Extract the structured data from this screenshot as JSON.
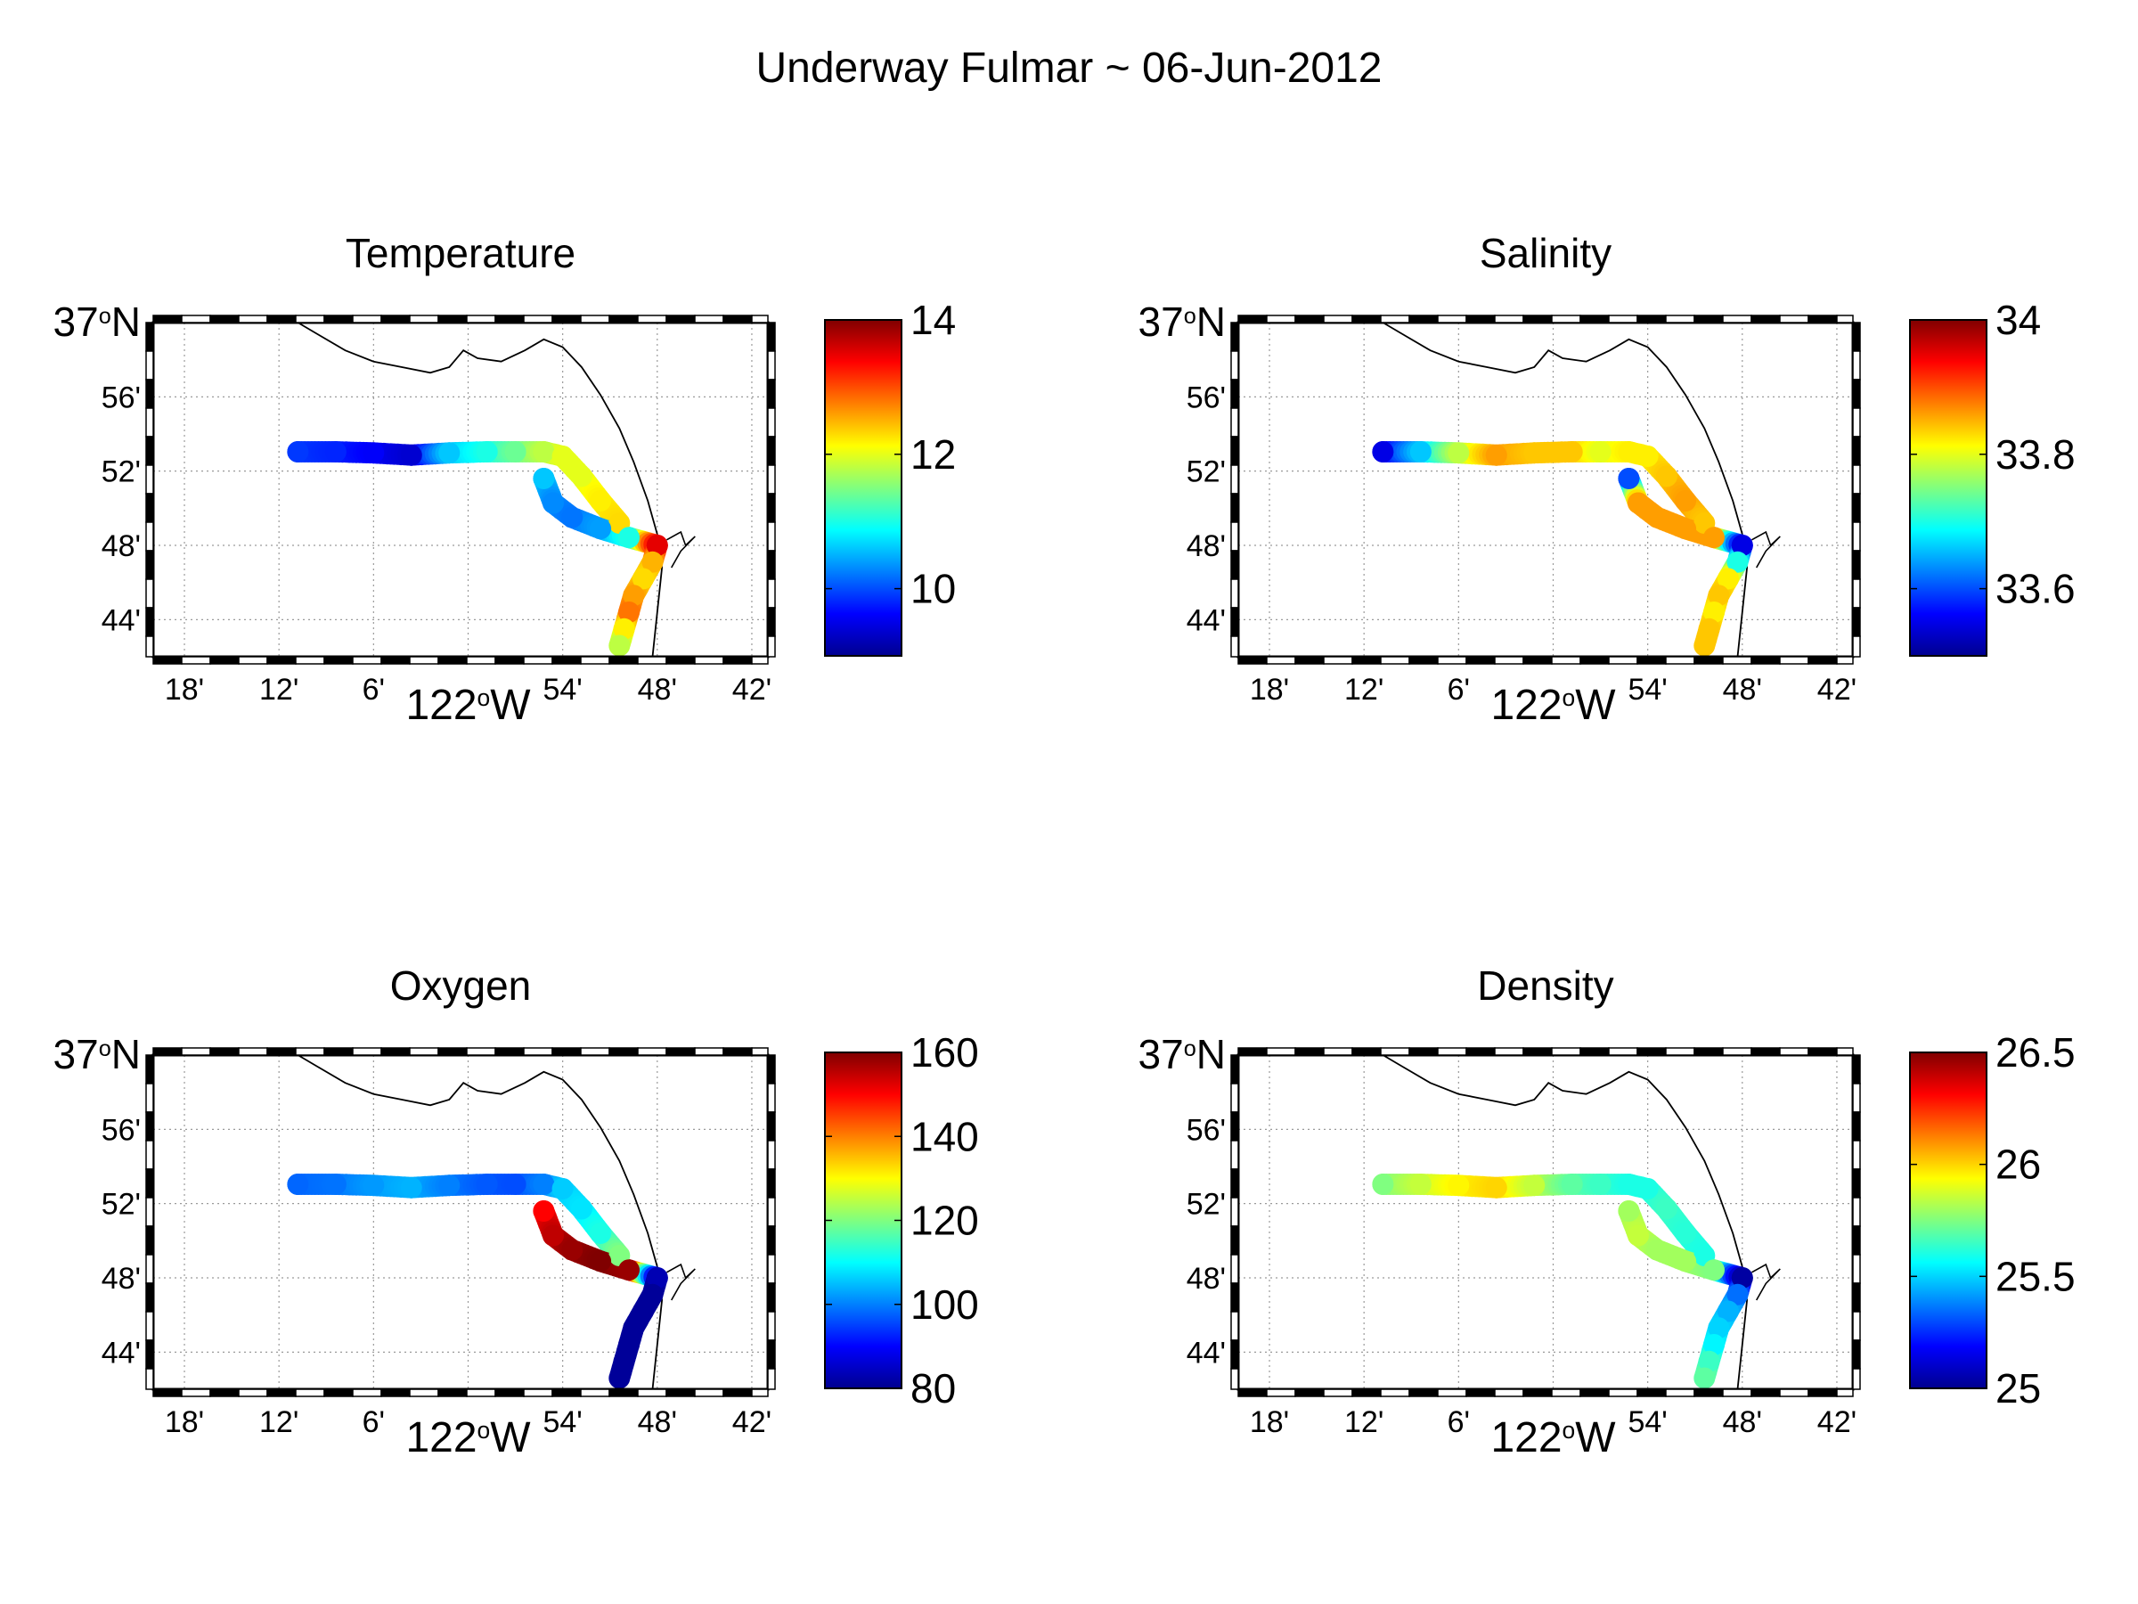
{
  "figure_title": "Underway Fulmar ~ 06-Jun-2012",
  "colormap": "jet",
  "chart_data": [
    {
      "type": "scatter",
      "title": "Temperature",
      "variable": "temperature",
      "lon_range": [
        -122.333,
        -121.683
      ],
      "lat_range": [
        36.7,
        37.0
      ],
      "x_ticks": [
        {
          "value": -122.3,
          "label": "18'"
        },
        {
          "value": -122.2,
          "label": "12'"
        },
        {
          "value": -122.1,
          "label": "6'"
        },
        {
          "value": -122.0,
          "label": "122ºW"
        },
        {
          "value": -121.9,
          "label": "54'"
        },
        {
          "value": -121.8,
          "label": "48'"
        },
        {
          "value": -121.7,
          "label": "42'"
        }
      ],
      "y_ticks": [
        {
          "value": 37.0,
          "label": "37ºN"
        },
        {
          "value": 36.9333,
          "label": "56'"
        },
        {
          "value": 36.8667,
          "label": "52'"
        },
        {
          "value": 36.8,
          "label": "48'"
        },
        {
          "value": 36.7333,
          "label": "44'"
        }
      ],
      "grid": true,
      "colorbar": {
        "range": [
          9,
          14
        ],
        "ticks": [
          10,
          12,
          14
        ]
      },
      "points": [
        {
          "lon": -122.18,
          "lat": 36.884,
          "value": 9.9
        },
        {
          "lon": -122.14,
          "lat": 36.884,
          "value": 9.8
        },
        {
          "lon": -122.1,
          "lat": 36.883,
          "value": 9.6
        },
        {
          "lon": -122.06,
          "lat": 36.881,
          "value": 9.4
        },
        {
          "lon": -122.02,
          "lat": 36.883,
          "value": 10.6
        },
        {
          "lon": -121.98,
          "lat": 36.884,
          "value": 11.0
        },
        {
          "lon": -121.95,
          "lat": 36.884,
          "value": 11.4
        },
        {
          "lon": -121.92,
          "lat": 36.884,
          "value": 11.8
        },
        {
          "lon": -121.9,
          "lat": 36.88,
          "value": 12.0
        },
        {
          "lon": -121.88,
          "lat": 36.862,
          "value": 12.0
        },
        {
          "lon": -121.86,
          "lat": 36.84,
          "value": 12.2
        },
        {
          "lon": -121.84,
          "lat": 36.82,
          "value": 12.3
        },
        {
          "lon": -121.92,
          "lat": 36.86,
          "value": 10.6
        },
        {
          "lon": -121.91,
          "lat": 36.838,
          "value": 10.3
        },
        {
          "lon": -121.89,
          "lat": 36.825,
          "value": 10.2
        },
        {
          "lon": -121.86,
          "lat": 36.815,
          "value": 10.4
        },
        {
          "lon": -121.83,
          "lat": 36.807,
          "value": 11.0
        },
        {
          "lon": -121.8,
          "lat": 36.8,
          "value": 13.5
        },
        {
          "lon": -121.805,
          "lat": 36.785,
          "value": 12.5
        },
        {
          "lon": -121.815,
          "lat": 36.77,
          "value": 12.3
        },
        {
          "lon": -121.825,
          "lat": 36.755,
          "value": 12.6
        },
        {
          "lon": -121.83,
          "lat": 36.74,
          "value": 12.8
        },
        {
          "lon": -121.835,
          "lat": 36.725,
          "value": 12.2
        },
        {
          "lon": -121.84,
          "lat": 36.71,
          "value": 11.8
        }
      ]
    },
    {
      "type": "scatter",
      "title": "Salinity",
      "variable": "salinity",
      "lon_range": [
        -122.333,
        -121.683
      ],
      "lat_range": [
        36.7,
        37.0
      ],
      "x_ticks": [
        {
          "value": -122.3,
          "label": "18'"
        },
        {
          "value": -122.2,
          "label": "12'"
        },
        {
          "value": -122.1,
          "label": "6'"
        },
        {
          "value": -122.0,
          "label": "122ºW"
        },
        {
          "value": -121.9,
          "label": "54'"
        },
        {
          "value": -121.8,
          "label": "48'"
        },
        {
          "value": -121.7,
          "label": "42'"
        }
      ],
      "y_ticks": [
        {
          "value": 37.0,
          "label": "37ºN"
        },
        {
          "value": 36.9333,
          "label": "56'"
        },
        {
          "value": 36.8667,
          "label": "52'"
        },
        {
          "value": 36.8,
          "label": "48'"
        },
        {
          "value": 36.7333,
          "label": "44'"
        }
      ],
      "grid": true,
      "colorbar": {
        "range": [
          33.5,
          34.0
        ],
        "ticks": [
          33.6,
          33.8,
          34
        ]
      },
      "points": [
        {
          "lon": -122.18,
          "lat": 36.884,
          "value": 33.55
        },
        {
          "lon": -122.14,
          "lat": 36.884,
          "value": 33.66
        },
        {
          "lon": -122.1,
          "lat": 36.883,
          "value": 33.78
        },
        {
          "lon": -122.06,
          "lat": 36.881,
          "value": 33.86
        },
        {
          "lon": -122.02,
          "lat": 36.883,
          "value": 33.84
        },
        {
          "lon": -121.98,
          "lat": 36.884,
          "value": 33.84
        },
        {
          "lon": -121.95,
          "lat": 36.884,
          "value": 33.8
        },
        {
          "lon": -121.92,
          "lat": 36.884,
          "value": 33.82
        },
        {
          "lon": -121.9,
          "lat": 36.88,
          "value": 33.82
        },
        {
          "lon": -121.88,
          "lat": 36.862,
          "value": 33.84
        },
        {
          "lon": -121.86,
          "lat": 36.84,
          "value": 33.86
        },
        {
          "lon": -121.84,
          "lat": 36.82,
          "value": 33.84
        },
        {
          "lon": -121.92,
          "lat": 36.86,
          "value": 33.6
        },
        {
          "lon": -121.91,
          "lat": 36.838,
          "value": 33.86
        },
        {
          "lon": -121.89,
          "lat": 36.825,
          "value": 33.86
        },
        {
          "lon": -121.86,
          "lat": 36.815,
          "value": 33.86
        },
        {
          "lon": -121.83,
          "lat": 36.807,
          "value": 33.86
        },
        {
          "lon": -121.8,
          "lat": 36.8,
          "value": 33.55
        },
        {
          "lon": -121.805,
          "lat": 36.785,
          "value": 33.7
        },
        {
          "lon": -121.815,
          "lat": 36.77,
          "value": 33.82
        },
        {
          "lon": -121.825,
          "lat": 36.755,
          "value": 33.84
        },
        {
          "lon": -121.83,
          "lat": 36.74,
          "value": 33.82
        },
        {
          "lon": -121.835,
          "lat": 36.725,
          "value": 33.84
        },
        {
          "lon": -121.84,
          "lat": 36.71,
          "value": 33.84
        }
      ]
    },
    {
      "type": "scatter",
      "title": "Oxygen",
      "variable": "oxygen",
      "lon_range": [
        -122.333,
        -121.683
      ],
      "lat_range": [
        36.7,
        37.0
      ],
      "x_ticks": [
        {
          "value": -122.3,
          "label": "18'"
        },
        {
          "value": -122.2,
          "label": "12'"
        },
        {
          "value": -122.1,
          "label": "6'"
        },
        {
          "value": -122.0,
          "label": "122ºW"
        },
        {
          "value": -121.9,
          "label": "54'"
        },
        {
          "value": -121.8,
          "label": "48'"
        },
        {
          "value": -121.7,
          "label": "42'"
        }
      ],
      "y_ticks": [
        {
          "value": 37.0,
          "label": "37ºN"
        },
        {
          "value": 36.9333,
          "label": "56'"
        },
        {
          "value": 36.8667,
          "label": "52'"
        },
        {
          "value": 36.8,
          "label": "48'"
        },
        {
          "value": 36.7333,
          "label": "44'"
        }
      ],
      "grid": true,
      "colorbar": {
        "range": [
          80,
          160
        ],
        "ticks": [
          80,
          100,
          120,
          140,
          160
        ]
      },
      "points": [
        {
          "lon": -122.18,
          "lat": 36.884,
          "value": 98
        },
        {
          "lon": -122.14,
          "lat": 36.884,
          "value": 99
        },
        {
          "lon": -122.1,
          "lat": 36.883,
          "value": 102
        },
        {
          "lon": -122.06,
          "lat": 36.881,
          "value": 104
        },
        {
          "lon": -122.02,
          "lat": 36.883,
          "value": 100
        },
        {
          "lon": -121.98,
          "lat": 36.884,
          "value": 97
        },
        {
          "lon": -121.95,
          "lat": 36.884,
          "value": 96
        },
        {
          "lon": -121.92,
          "lat": 36.884,
          "value": 100
        },
        {
          "lon": -121.9,
          "lat": 36.88,
          "value": 106
        },
        {
          "lon": -121.88,
          "lat": 36.862,
          "value": 108
        },
        {
          "lon": -121.86,
          "lat": 36.84,
          "value": 112
        },
        {
          "lon": -121.84,
          "lat": 36.82,
          "value": 120
        },
        {
          "lon": -121.92,
          "lat": 36.86,
          "value": 150
        },
        {
          "lon": -121.91,
          "lat": 36.838,
          "value": 155
        },
        {
          "lon": -121.89,
          "lat": 36.825,
          "value": 158
        },
        {
          "lon": -121.86,
          "lat": 36.815,
          "value": 160
        },
        {
          "lon": -121.83,
          "lat": 36.807,
          "value": 158
        },
        {
          "lon": -121.8,
          "lat": 36.8,
          "value": 84
        },
        {
          "lon": -121.805,
          "lat": 36.785,
          "value": 82
        },
        {
          "lon": -121.815,
          "lat": 36.77,
          "value": 82
        },
        {
          "lon": -121.825,
          "lat": 36.755,
          "value": 82
        },
        {
          "lon": -121.83,
          "lat": 36.74,
          "value": 82
        },
        {
          "lon": -121.835,
          "lat": 36.725,
          "value": 82
        },
        {
          "lon": -121.84,
          "lat": 36.71,
          "value": 82
        }
      ]
    },
    {
      "type": "scatter",
      "title": "Density",
      "variable": "density",
      "lon_range": [
        -122.333,
        -121.683
      ],
      "lat_range": [
        36.7,
        37.0
      ],
      "x_ticks": [
        {
          "value": -122.3,
          "label": "18'"
        },
        {
          "value": -122.2,
          "label": "12'"
        },
        {
          "value": -122.1,
          "label": "6'"
        },
        {
          "value": -122.0,
          "label": "122ºW"
        },
        {
          "value": -121.9,
          "label": "54'"
        },
        {
          "value": -121.8,
          "label": "48'"
        },
        {
          "value": -121.7,
          "label": "42'"
        }
      ],
      "y_ticks": [
        {
          "value": 37.0,
          "label": "37ºN"
        },
        {
          "value": 36.9333,
          "label": "56'"
        },
        {
          "value": 36.8667,
          "label": "52'"
        },
        {
          "value": 36.8,
          "label": "48'"
        },
        {
          "value": 36.7333,
          "label": "44'"
        }
      ],
      "grid": true,
      "colorbar": {
        "range": [
          25.0,
          26.5
        ],
        "ticks": [
          25,
          25.5,
          26,
          26.5
        ]
      },
      "points": [
        {
          "lon": -122.18,
          "lat": 36.884,
          "value": 25.75
        },
        {
          "lon": -122.14,
          "lat": 36.884,
          "value": 25.85
        },
        {
          "lon": -122.1,
          "lat": 36.883,
          "value": 25.95
        },
        {
          "lon": -122.06,
          "lat": 36.881,
          "value": 26.0
        },
        {
          "lon": -122.02,
          "lat": 36.883,
          "value": 25.85
        },
        {
          "lon": -121.98,
          "lat": 36.884,
          "value": 25.7
        },
        {
          "lon": -121.95,
          "lat": 36.884,
          "value": 25.65
        },
        {
          "lon": -121.92,
          "lat": 36.884,
          "value": 25.6
        },
        {
          "lon": -121.9,
          "lat": 36.88,
          "value": 25.6
        },
        {
          "lon": -121.88,
          "lat": 36.862,
          "value": 25.65
        },
        {
          "lon": -121.86,
          "lat": 36.84,
          "value": 25.62
        },
        {
          "lon": -121.84,
          "lat": 36.82,
          "value": 25.6
        },
        {
          "lon": -121.92,
          "lat": 36.86,
          "value": 25.8
        },
        {
          "lon": -121.91,
          "lat": 36.838,
          "value": 25.85
        },
        {
          "lon": -121.89,
          "lat": 36.825,
          "value": 25.8
        },
        {
          "lon": -121.86,
          "lat": 36.815,
          "value": 25.8
        },
        {
          "lon": -121.83,
          "lat": 36.807,
          "value": 25.75
        },
        {
          "lon": -121.8,
          "lat": 36.8,
          "value": 25.05
        },
        {
          "lon": -121.805,
          "lat": 36.785,
          "value": 25.35
        },
        {
          "lon": -121.815,
          "lat": 36.77,
          "value": 25.45
        },
        {
          "lon": -121.825,
          "lat": 36.755,
          "value": 25.5
        },
        {
          "lon": -121.83,
          "lat": 36.74,
          "value": 25.55
        },
        {
          "lon": -121.835,
          "lat": 36.725,
          "value": 25.65
        },
        {
          "lon": -121.84,
          "lat": 36.71,
          "value": 25.7
        }
      ]
    }
  ]
}
